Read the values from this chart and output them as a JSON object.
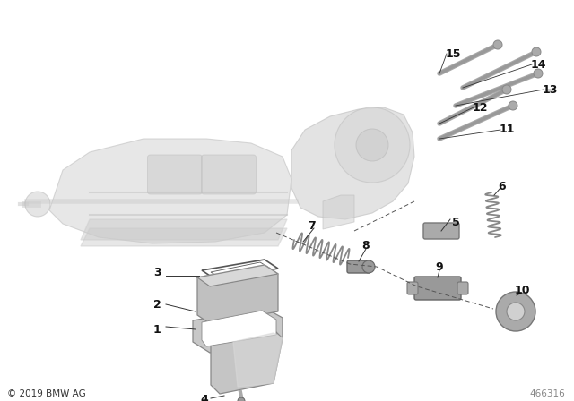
{
  "copyright": "© 2019 BMW AG",
  "part_number": "466316",
  "bg_color": "#ffffff",
  "label_color": "#000000",
  "fig_w": 6.4,
  "fig_h": 4.48,
  "dpi": 100
}
